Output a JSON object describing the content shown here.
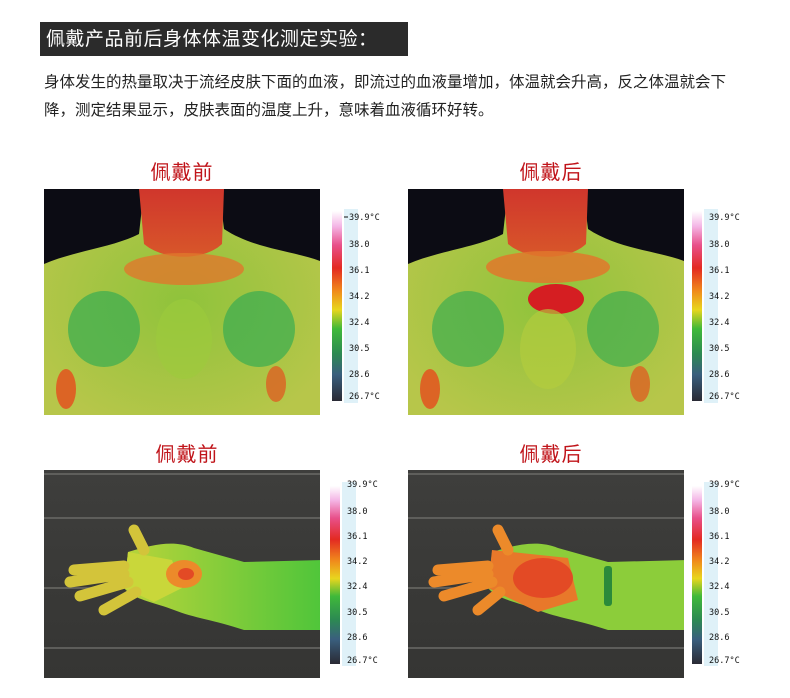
{
  "title": "佩戴产品前后身体体温变化测定实验：",
  "description": "身体发生的热量取决于流经皮肤下面的血液，即流过的血液量增加，体温就会升高，反之体温就会下降，测定结果显示，皮肤表面的温度上升，意味着血液循环好转。",
  "panels": [
    {
      "label": "佩戴前",
      "subject": "neck-shoulders"
    },
    {
      "label": "佩戴后",
      "subject": "neck-shoulders"
    },
    {
      "label": "佩戴前",
      "subject": "arm-hand"
    },
    {
      "label": "佩戴后",
      "subject": "arm-hand"
    }
  ],
  "scale": {
    "ticks": [
      "39.9°C",
      "38.0",
      "36.1",
      "34.2",
      "32.4",
      "30.5",
      "28.6",
      "26.7°C"
    ]
  },
  "colors": {
    "title_bg": "#2b2b2b",
    "label_red": "#c0141a"
  }
}
